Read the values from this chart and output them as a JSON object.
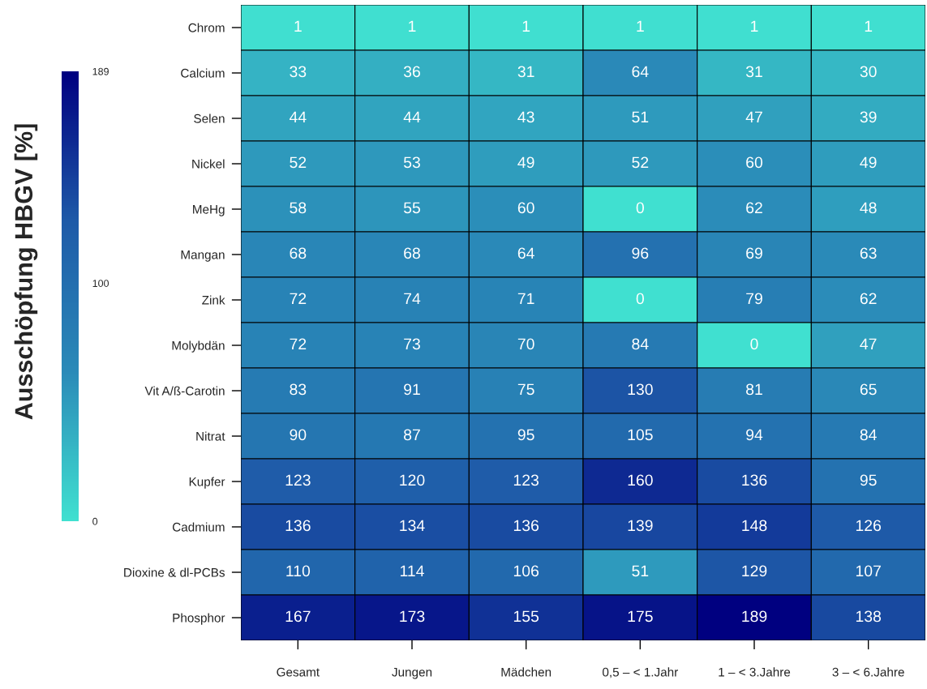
{
  "chart_data": {
    "type": "heatmap",
    "clabel": "Ausschöpfung HBGV [%]",
    "categories": [
      "Gesamt",
      "Jungen",
      "Mädchen",
      "0,5 – < 1.Jahr",
      "1 – < 3.Jahre",
      "3 – < 6.Jahre"
    ],
    "y_categories": [
      "Chrom",
      "Calcium",
      "Selen",
      "Nickel",
      "MeHg",
      "Mangan",
      "Zink",
      "Molybdän",
      "Vit A/ß-Carotin",
      "Nitrat",
      "Kupfer",
      "Cadmium",
      "Dioxine & dl-PCBs",
      "Phosphor"
    ],
    "cells": [
      [
        1,
        1,
        1,
        1,
        1,
        1
      ],
      [
        33,
        36,
        31,
        64,
        31,
        30
      ],
      [
        44,
        44,
        43,
        51,
        47,
        39
      ],
      [
        52,
        53,
        49,
        52,
        60,
        49
      ],
      [
        58,
        55,
        60,
        0,
        62,
        48
      ],
      [
        68,
        68,
        64,
        96,
        69,
        63
      ],
      [
        72,
        74,
        71,
        0,
        79,
        62
      ],
      [
        72,
        73,
        70,
        84,
        0,
        47
      ],
      [
        83,
        91,
        75,
        130,
        81,
        65
      ],
      [
        90,
        87,
        95,
        105,
        94,
        84
      ],
      [
        123,
        120,
        123,
        160,
        136,
        95
      ],
      [
        136,
        134,
        136,
        139,
        148,
        126
      ],
      [
        110,
        114,
        106,
        51,
        129,
        107
      ],
      [
        167,
        173,
        155,
        175,
        189,
        138
      ]
    ],
    "clim": [
      0,
      189
    ],
    "cticks": [
      0,
      100,
      189
    ],
    "data_labels": true
  }
}
